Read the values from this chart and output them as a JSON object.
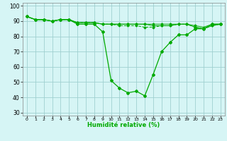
{
  "xlabel": "Humidité relative (%)",
  "background_color": "#d6f5f5",
  "grid_color": "#a0d0d0",
  "line_color": "#00aa00",
  "xlim": [
    -0.5,
    23.5
  ],
  "ylim": [
    28,
    102
  ],
  "yticks": [
    30,
    40,
    50,
    60,
    70,
    80,
    90,
    100
  ],
  "xticks": [
    0,
    1,
    2,
    3,
    4,
    5,
    6,
    7,
    8,
    9,
    10,
    11,
    12,
    13,
    14,
    15,
    16,
    17,
    18,
    19,
    20,
    21,
    22,
    23
  ],
  "xtick_labels": [
    "0",
    "1",
    "2",
    "3",
    "4",
    "5",
    "6",
    "7",
    "8",
    "9",
    "10",
    "11",
    "12",
    "13",
    "14",
    "15",
    "16",
    "17",
    "18",
    "19",
    "20",
    "21",
    "22",
    "23"
  ],
  "series": [
    [
      93,
      91,
      91,
      90,
      91,
      91,
      88,
      88,
      88,
      83,
      51,
      46,
      43,
      44,
      41,
      55,
      70,
      76,
      81,
      81,
      85,
      85,
      88,
      88
    ],
    [
      93,
      91,
      91,
      90,
      91,
      91,
      89,
      89,
      89,
      88,
      88,
      87,
      87,
      87,
      86,
      86,
      87,
      87,
      88,
      88,
      86,
      85,
      87,
      88
    ],
    [
      93,
      91,
      91,
      90,
      91,
      91,
      89,
      89,
      89,
      88,
      88,
      88,
      88,
      88,
      88,
      87,
      87,
      87,
      88,
      88,
      86,
      85,
      87,
      88
    ],
    [
      93,
      91,
      91,
      90,
      91,
      91,
      89,
      89,
      89,
      88,
      88,
      88,
      88,
      88,
      88,
      88,
      88,
      88,
      88,
      88,
      87,
      86,
      88,
      88
    ]
  ]
}
